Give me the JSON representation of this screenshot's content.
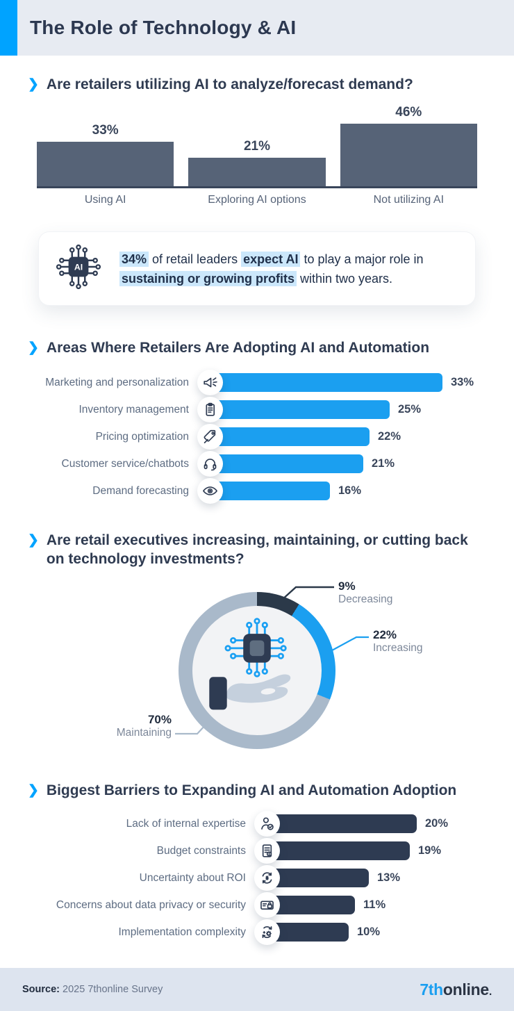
{
  "header": {
    "title": "The Role of Technology & AI"
  },
  "sections": [
    {
      "heading": "Are retailers utilizing AI to analyze/forecast demand?"
    },
    {
      "heading": "Areas Where Retailers Are Adopting AI and Automation"
    },
    {
      "heading": "Are retail executives increasing, maintaining, or cutting back on technology investments?"
    },
    {
      "heading": "Biggest Barriers to Expanding AI and Automation Adoption"
    }
  ],
  "callout": {
    "icon": "ai-chip-icon",
    "segments": [
      {
        "text": "34%",
        "highlight": true
      },
      {
        "text": " of retail leaders ",
        "highlight": false
      },
      {
        "text": "expect AI",
        "highlight": true
      },
      {
        "text": " to play a major role in ",
        "highlight": false
      },
      {
        "text": "sustaining or growing profits",
        "highlight": true
      },
      {
        "text": " within two years.",
        "highlight": false
      }
    ]
  },
  "chart_data": [
    {
      "type": "bar",
      "orientation": "vertical",
      "title": "Are retailers utilizing AI to analyze/forecast demand?",
      "categories": [
        "Using AI",
        "Exploring AI options",
        "Not utilizing AI"
      ],
      "values": [
        33,
        21,
        46
      ],
      "unit": "%",
      "bar_color": "#566377",
      "ylim": [
        0,
        50
      ],
      "grid": false
    },
    {
      "type": "bar",
      "orientation": "horizontal",
      "title": "Areas Where Retailers Are Adopting AI and Automation",
      "categories": [
        "Marketing and personalization",
        "Inventory management",
        "Pricing optimization",
        "Customer service/chatbots",
        "Demand forecasting"
      ],
      "values": [
        33,
        25,
        22,
        21,
        16
      ],
      "icons": [
        "megaphone-icon",
        "clipboard-icon",
        "price-tag-icon",
        "headset-icon",
        "eye-icon"
      ],
      "unit": "%",
      "bar_color": "#1b9ff0",
      "grid": false
    },
    {
      "type": "pie",
      "donut": true,
      "title": "Are retail executives increasing, maintaining, or cutting back on technology investments?",
      "labels": [
        "Decreasing",
        "Increasing",
        "Maintaining"
      ],
      "values": [
        9,
        22,
        70
      ],
      "colors": [
        "#2b3949",
        "#1b9ff0",
        "#a9b9ca"
      ],
      "unit": "%",
      "center_icon": "hand-holding-ai-chip-illustration",
      "legend_position": "callout-labels"
    },
    {
      "type": "bar",
      "orientation": "horizontal",
      "title": "Biggest Barriers to Expanding AI and Automation Adoption",
      "categories": [
        "Lack of internal expertise",
        "Budget constraints",
        "Uncertainty about ROI",
        "Concerns about data privacy or security",
        "Implementation complexity"
      ],
      "values": [
        20,
        19,
        13,
        11,
        10
      ],
      "icons": [
        "person-check-icon",
        "budget-document-icon",
        "roi-icon",
        "privacy-card-icon",
        "complexity-gear-icon"
      ],
      "unit": "%",
      "bar_color": "#2e3b52",
      "grid": false
    }
  ],
  "footer": {
    "source_label": "Source:",
    "source_text": "2025 7thonline Survey",
    "logo": {
      "part1": "7th",
      "part2": "online",
      "suffix": "."
    }
  },
  "colors": {
    "accent_blue": "#00a3ff",
    "bright_blue": "#1b9ff0",
    "slate_bar": "#566377",
    "dark_navy": "#2e3b52",
    "donut_gray": "#a9b9ca",
    "header_bg": "#e7ebf2",
    "footer_bg": "#dde4ef",
    "highlight_blue": "#cbe7fb"
  }
}
